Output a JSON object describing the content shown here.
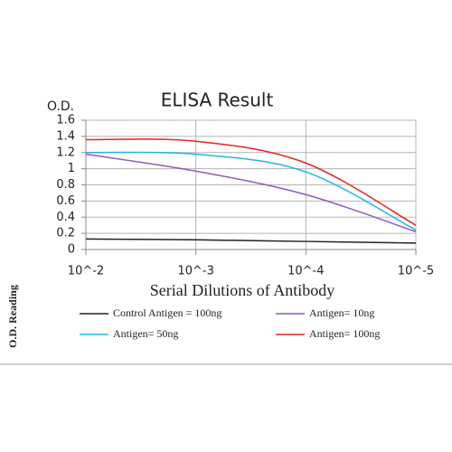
{
  "chart_data": {
    "type": "line",
    "title": "ELISA Result",
    "y_unit_label": "O.D.",
    "x_label": "Serial Dilutions of Antibody",
    "y_label": "O.D. Reading",
    "categories": [
      "10^-2",
      "10^-3",
      "10^-4",
      "10^-5"
    ],
    "ylim": [
      0,
      1.6
    ],
    "yticks": [
      0,
      0.2,
      0.4,
      0.6,
      0.8,
      1,
      1.2,
      1.4,
      1.6
    ],
    "grid": true,
    "series": [
      {
        "name": "Control Antigen = 100ng",
        "color": "#222222",
        "values": [
          0.13,
          0.12,
          0.1,
          0.08
        ]
      },
      {
        "name": "Antigen= 10ng",
        "color": "#8e5bb5",
        "values": [
          1.18,
          0.97,
          0.68,
          0.22
        ]
      },
      {
        "name": "Antigen= 50ng",
        "color": "#22b5e0",
        "values": [
          1.2,
          1.18,
          0.96,
          0.24
        ]
      },
      {
        "name": "Antigen= 100ng",
        "color": "#e8231f",
        "values": [
          1.36,
          1.34,
          1.07,
          0.3
        ]
      }
    ]
  }
}
